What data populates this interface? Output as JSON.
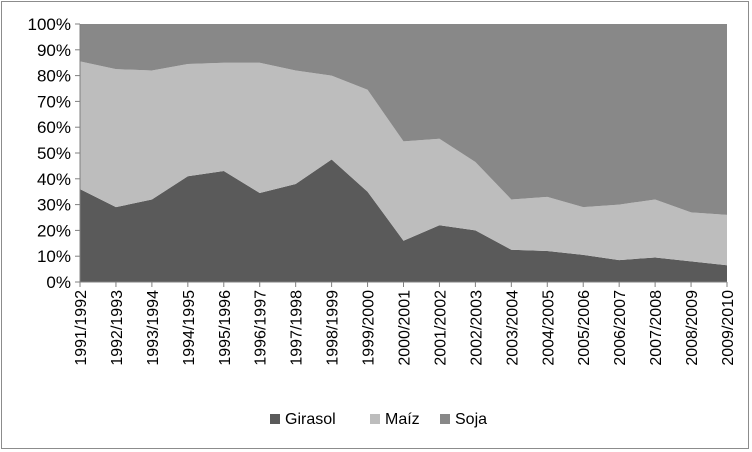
{
  "chart_data": {
    "type": "area",
    "stacked": "percent",
    "categories": [
      "1991/1992",
      "1992/1993",
      "1993/1994",
      "1994/1995",
      "1995/1996",
      "1996/1997",
      "1997/1998",
      "1998/1999",
      "1999/2000",
      "2000/2001",
      "2001/2002",
      "2002/2003",
      "2003/2004",
      "2004/2005",
      "2005/2006",
      "2006/2007",
      "2007/2008",
      "2008/2009",
      "2009/2010"
    ],
    "y_ticks": [
      "0%",
      "10%",
      "20%",
      "30%",
      "40%",
      "50%",
      "60%",
      "70%",
      "80%",
      "90%",
      "100%"
    ],
    "ylim": [
      0,
      100
    ],
    "grid": false,
    "legend_position": "bottom",
    "series": [
      {
        "name": "Girasol",
        "color": "#5a5a5a",
        "values": [
          36,
          29,
          32,
          41,
          43,
          34.5,
          38,
          47.5,
          35,
          16,
          22,
          20,
          12.5,
          12,
          10.5,
          8.5,
          9.5,
          8,
          6.5
        ]
      },
      {
        "name": "Maíz",
        "color": "#bdbdbd",
        "values": [
          49.5,
          53.5,
          50,
          43.5,
          42,
          50.5,
          44,
          32.5,
          39.5,
          38.5,
          33.5,
          26.5,
          19.5,
          21,
          18.5,
          21.5,
          22.5,
          19,
          19.5
        ]
      },
      {
        "name": "Soja",
        "color": "#888888",
        "values": [
          14.5,
          17.5,
          18,
          15.5,
          15,
          15,
          18,
          20,
          25.5,
          45.5,
          44.5,
          53.5,
          68,
          67,
          71,
          70,
          68,
          73,
          74
        ]
      }
    ]
  }
}
